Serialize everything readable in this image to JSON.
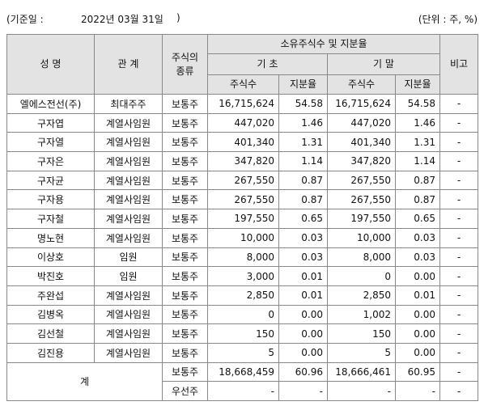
{
  "header": {
    "date_prefix": "(기준일 :",
    "date": "2022년 03월 31일",
    "date_suffix": ")",
    "unit": "(단위 : 주, %)"
  },
  "table": {
    "head": {
      "name": "성 명",
      "relation": "관 계",
      "type": "주식의 종류",
      "group": "소유주식수 및 지분율",
      "start": "기 초",
      "end": "기 말",
      "shares_start": "주식수",
      "ratio_start": "지분율",
      "shares_end": "주식수",
      "ratio_end": "지분율",
      "note": "비고"
    },
    "rows": [
      [
        "엘에스전선(주)",
        "최대주주",
        "보통주",
        "16,715,624",
        "54.58",
        "16,715,624",
        "54.58",
        "-"
      ],
      [
        "구자엽",
        "계열사임원",
        "보통주",
        "447,020",
        "1.46",
        "447,020",
        "1.46",
        "-"
      ],
      [
        "구자열",
        "계열사임원",
        "보통주",
        "401,340",
        "1.31",
        "401,340",
        "1.31",
        "-"
      ],
      [
        "구자은",
        "계열사임원",
        "보통주",
        "347,820",
        "1.14",
        "347,820",
        "1.14",
        "-"
      ],
      [
        "구자균",
        "계열사임원",
        "보통주",
        "267,550",
        "0.87",
        "267,550",
        "0.87",
        "-"
      ],
      [
        "구자용",
        "계열사임원",
        "보통주",
        "267,550",
        "0.87",
        "267,550",
        "0.87",
        "-"
      ],
      [
        "구자철",
        "계열사임원",
        "보통주",
        "197,550",
        "0.65",
        "197,550",
        "0.65",
        "-"
      ],
      [
        "명노현",
        "계열사임원",
        "보통주",
        "10,000",
        "0.03",
        "10,000",
        "0.03",
        "-"
      ],
      [
        "이상호",
        "임원",
        "보통주",
        "8,000",
        "0.03",
        "8,000",
        "0.03",
        "-"
      ],
      [
        "박진호",
        "임원",
        "보통주",
        "3,000",
        "0.01",
        "0",
        "0.00",
        "-"
      ],
      [
        "주완섭",
        "계열사임원",
        "보통주",
        "2,850",
        "0.01",
        "2,850",
        "0.01",
        "-"
      ],
      [
        "김병옥",
        "계열사임원",
        "보통주",
        "0",
        "0.00",
        "1,002",
        "0.00",
        "-"
      ],
      [
        "김선철",
        "계열사임원",
        "보통주",
        "150",
        "0.00",
        "150",
        "0.00",
        "-"
      ],
      [
        "김진용",
        "계열사임원",
        "보통주",
        "5",
        "0.00",
        "5",
        "0.00",
        "-"
      ]
    ],
    "total": {
      "label": "계",
      "rows": [
        [
          "보통주",
          "18,668,459",
          "60.96",
          "18,666,461",
          "60.95",
          "-"
        ],
        [
          "우선주",
          "-",
          "-",
          "-",
          "-",
          "-"
        ]
      ]
    }
  }
}
